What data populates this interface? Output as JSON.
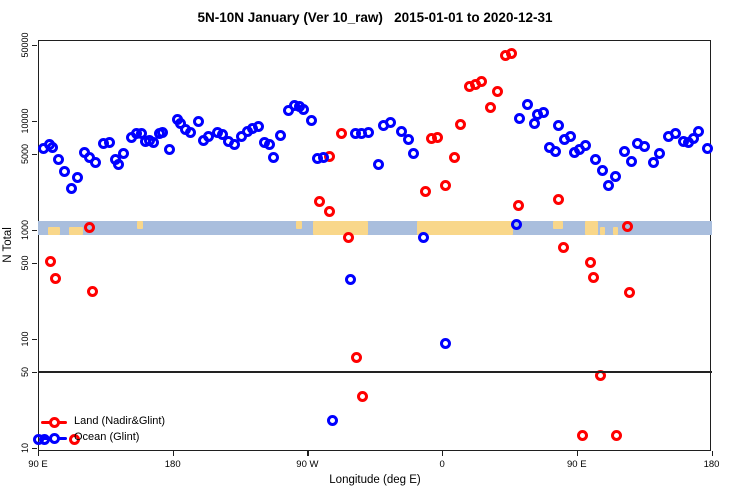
{
  "title": "5N-10N January (Ver 10_raw)   2015-01-01 to 2020-12-31",
  "axes": {
    "y": {
      "label": "N Total",
      "scale": "log10",
      "range": [
        10,
        50000
      ],
      "ticks": [
        {
          "v": 50000,
          "label": "50000"
        },
        {
          "v": 10000,
          "label": "10000"
        },
        {
          "v": 5000,
          "label": "5000"
        },
        {
          "v": 1000,
          "label": "1000"
        },
        {
          "v": 500,
          "label": "500"
        },
        {
          "v": 100,
          "label": "100"
        },
        {
          "v": 50,
          "label": "50"
        },
        {
          "v": 10,
          "label": "10"
        }
      ]
    },
    "x": {
      "label": "Longitude (deg E)",
      "note": "wrapped longitude axis spanning 450 degrees starting at 90E",
      "range_deg": [
        0,
        450
      ],
      "ticks": [
        {
          "deg": 0,
          "label": "90 E"
        },
        {
          "deg": 90,
          "label": "180"
        },
        {
          "deg": 180,
          "label": "90 W"
        },
        {
          "deg": 270,
          "label": "0"
        },
        {
          "deg": 360,
          "label": "90 E"
        },
        {
          "deg": 450,
          "label": "180"
        }
      ]
    }
  },
  "legend": {
    "items": [
      {
        "label": "Land (Nadir&Glint)",
        "color": "#ff0000"
      },
      {
        "label": "Ocean (Glint)",
        "color": "#0000ff"
      }
    ]
  },
  "threshold_line": {
    "value": 50,
    "color": "#222222"
  },
  "land_ocean_band": {
    "center_value": 1000,
    "ocean_color": "#a9bedd",
    "land_color": "#f9d78a",
    "segments_deg": [
      {
        "from": 6.7,
        "to": 14.7,
        "vpos": "lower"
      },
      {
        "from": 20.7,
        "to": 30.1,
        "vpos": "lower"
      },
      {
        "from": 66.1,
        "to": 70.2,
        "vpos": "upper"
      },
      {
        "from": 172.4,
        "to": 176.4,
        "vpos": "upper"
      },
      {
        "from": 183.7,
        "to": 220.5,
        "vpos": "full"
      },
      {
        "from": 253.2,
        "to": 317.4,
        "vpos": "full"
      },
      {
        "from": 344.1,
        "to": 350.8,
        "vpos": "upper"
      },
      {
        "from": 365.5,
        "to": 374.2,
        "vpos": "full"
      },
      {
        "from": 375.5,
        "to": 378.9,
        "vpos": "lower"
      },
      {
        "from": 384.2,
        "to": 387.5,
        "vpos": "lower"
      }
    ]
  },
  "chart_data": {
    "type": "scatter",
    "title": "5N-10N January (Ver 10_raw)   2015-01-01 to 2020-12-31",
    "xlabel": "Longitude (deg E)",
    "ylabel": "N Total",
    "ylim": [
      10,
      50000
    ],
    "y_scale": "log",
    "grid": false,
    "legend_position": "bottom-left",
    "series": [
      {
        "name": "Land (Nadir&Glint)",
        "color": "#ff0000",
        "marker": "open-circle",
        "points_deg_value": [
          [
            8.5,
            510
          ],
          [
            12,
            360
          ],
          [
            24.5,
            12
          ],
          [
            34.5,
            1050
          ],
          [
            36.5,
            273
          ],
          [
            188,
            1820
          ],
          [
            194.5,
            1470
          ],
          [
            194.5,
            4750
          ],
          [
            202.5,
            7650
          ],
          [
            207.5,
            850
          ],
          [
            212.5,
            67
          ],
          [
            216.5,
            30
          ],
          [
            259,
            2260
          ],
          [
            263,
            6890
          ],
          [
            267,
            7030
          ],
          [
            272,
            2550
          ],
          [
            278.5,
            4590
          ],
          [
            282.5,
            9330
          ],
          [
            288.5,
            20600
          ],
          [
            292,
            21800
          ],
          [
            296.5,
            22900
          ],
          [
            302.5,
            13300
          ],
          [
            307,
            18900
          ],
          [
            312.5,
            40400
          ],
          [
            316.5,
            41900
          ],
          [
            321,
            1670
          ],
          [
            347.5,
            1920
          ],
          [
            351,
            690
          ],
          [
            363.5,
            13
          ],
          [
            369,
            500
          ],
          [
            371,
            370
          ],
          [
            376,
            46
          ],
          [
            386.5,
            13
          ],
          [
            394,
            1070
          ],
          [
            395.5,
            270
          ]
        ]
      },
      {
        "name": "Ocean (Glint)",
        "color": "#0000ff",
        "marker": "open-circle",
        "points_deg_value": [
          [
            0,
            12
          ],
          [
            3.5,
            5630
          ],
          [
            4.5,
            12
          ],
          [
            7.5,
            6130
          ],
          [
            10,
            5750
          ],
          [
            13.5,
            4430
          ],
          [
            17.5,
            3450
          ],
          [
            22.5,
            2430
          ],
          [
            26.5,
            3040
          ],
          [
            31,
            5140
          ],
          [
            34.5,
            4590
          ],
          [
            38.5,
            4160
          ],
          [
            43.5,
            6270
          ],
          [
            47.5,
            6400
          ],
          [
            52,
            4410
          ],
          [
            54,
            4040
          ],
          [
            57,
            5000
          ],
          [
            62.5,
            7110
          ],
          [
            66,
            7650
          ],
          [
            69,
            7750
          ],
          [
            71.5,
            6500
          ],
          [
            74.5,
            6640
          ],
          [
            77,
            6400
          ],
          [
            81,
            7650
          ],
          [
            83,
            7870
          ],
          [
            88,
            5520
          ],
          [
            93,
            10400
          ],
          [
            95.5,
            9590
          ],
          [
            98.5,
            8340
          ],
          [
            102,
            7910
          ],
          [
            107,
            9890
          ],
          [
            110.5,
            6640
          ],
          [
            114,
            7230
          ],
          [
            120,
            7910
          ],
          [
            123.5,
            7530
          ],
          [
            127.5,
            6500
          ],
          [
            131.5,
            6100
          ],
          [
            136,
            7230
          ],
          [
            140,
            8090
          ],
          [
            143.5,
            8510
          ],
          [
            147.5,
            8930
          ],
          [
            151.5,
            6400
          ],
          [
            155,
            6060
          ],
          [
            157.5,
            4660
          ],
          [
            162,
            7380
          ],
          [
            167.5,
            12400
          ],
          [
            171.5,
            14000
          ],
          [
            174.5,
            13500
          ],
          [
            177.5,
            12800
          ],
          [
            183,
            10100
          ],
          [
            187,
            4500
          ],
          [
            191,
            4660
          ],
          [
            197,
            18
          ],
          [
            208.5,
            350
          ],
          [
            212,
            7750
          ],
          [
            216,
            7750
          ],
          [
            220.5,
            7910
          ],
          [
            227.5,
            3980
          ],
          [
            231,
            9120
          ],
          [
            235.5,
            9730
          ],
          [
            243,
            8090
          ],
          [
            247.5,
            6730
          ],
          [
            251,
            5070
          ],
          [
            257.5,
            850
          ],
          [
            272,
            91
          ],
          [
            319.5,
            1130
          ],
          [
            321.5,
            10500
          ],
          [
            327,
            14300
          ],
          [
            331.5,
            9590
          ],
          [
            334,
            11500
          ],
          [
            337.5,
            11900
          ],
          [
            342,
            5680
          ],
          [
            346,
            5280
          ],
          [
            347.5,
            9120
          ],
          [
            351.5,
            6730
          ],
          [
            356,
            7280
          ],
          [
            358.5,
            5180
          ],
          [
            362,
            5480
          ],
          [
            366,
            5970
          ],
          [
            372.5,
            4430
          ],
          [
            377.5,
            3510
          ],
          [
            381,
            2590
          ],
          [
            386,
            3100
          ],
          [
            392,
            5250
          ],
          [
            396.5,
            4250
          ],
          [
            400.5,
            6180
          ],
          [
            405.5,
            5880
          ],
          [
            411.5,
            4130
          ],
          [
            415.5,
            5000
          ],
          [
            421.5,
            7280
          ],
          [
            426,
            7750
          ],
          [
            431,
            6500
          ],
          [
            434.5,
            6320
          ],
          [
            438,
            6970
          ],
          [
            441.5,
            8030
          ],
          [
            447,
            5630
          ]
        ]
      }
    ]
  }
}
